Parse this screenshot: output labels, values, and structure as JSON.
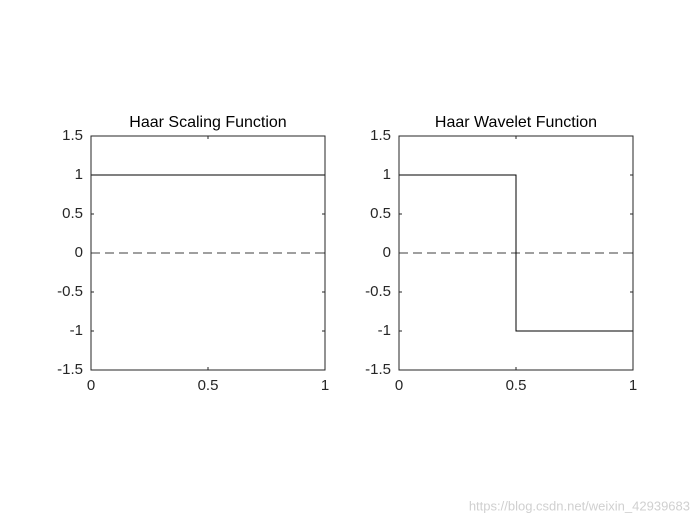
{
  "chart_data": [
    {
      "type": "line",
      "title": "Haar Scaling Function",
      "series": [
        {
          "color": "#000000",
          "x": [
            0,
            0,
            1
          ],
          "values": [
            0,
            1,
            1
          ]
        }
      ],
      "reference_line": {
        "value": 0,
        "color": "#666666",
        "dashed": true
      },
      "xlim": [
        0,
        1
      ],
      "xticks": [
        0,
        0.5,
        1
      ],
      "ylim": [
        -1.5,
        1.5
      ],
      "yticks": [
        -1.5,
        -1,
        -0.5,
        0,
        0.5,
        1,
        1.5
      ],
      "grid": false,
      "box": true
    },
    {
      "type": "line",
      "title": "Haar Wavelet Function",
      "series": [
        {
          "color": "#000000",
          "x": [
            0,
            0,
            0.5,
            0.5,
            1
          ],
          "values": [
            0,
            1,
            1,
            -1,
            -1
          ]
        }
      ],
      "reference_line": {
        "value": 0,
        "color": "#666666",
        "dashed": true
      },
      "xlim": [
        0,
        1
      ],
      "xticks": [
        0,
        0.5,
        1
      ],
      "ylim": [
        -1.5,
        1.5
      ],
      "yticks": [
        -1.5,
        -1,
        -0.5,
        0,
        0.5,
        1,
        1.5
      ],
      "grid": false,
      "box": true
    }
  ],
  "watermark": "https://blog.csdn.net/weixin_42939683"
}
